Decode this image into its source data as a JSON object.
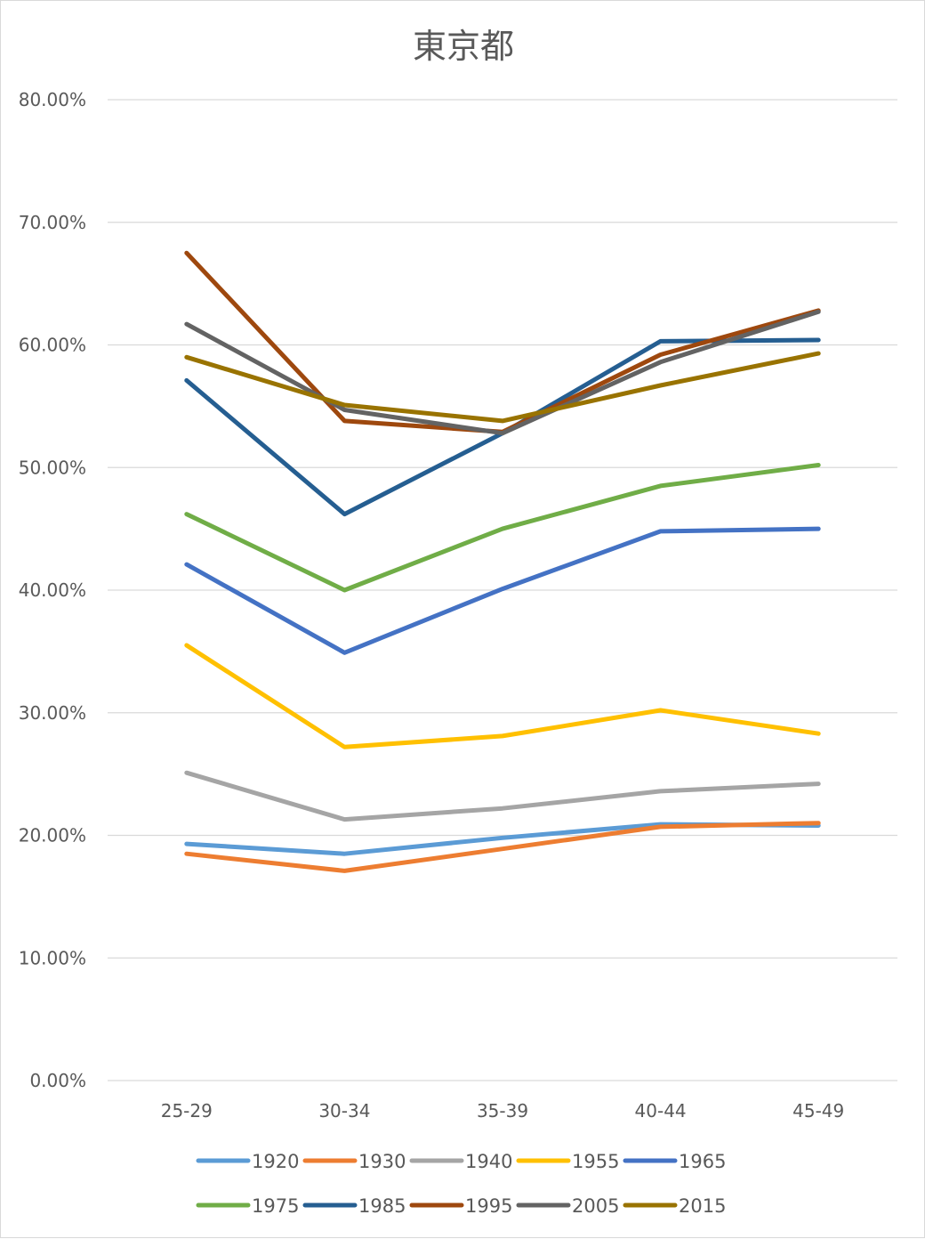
{
  "chart_data": {
    "type": "line",
    "title": "東京都",
    "xlabel": "",
    "ylabel": "",
    "categories": [
      "25-29",
      "30-34",
      "35-39",
      "40-44",
      "45-49"
    ],
    "ylim": [
      0,
      0.8
    ],
    "yticks": [
      0,
      0.1,
      0.2,
      0.3,
      0.4,
      0.5,
      0.6,
      0.7,
      0.8
    ],
    "ytick_labels": [
      "0.00%",
      "10.00%",
      "20.00%",
      "30.00%",
      "40.00%",
      "50.00%",
      "60.00%",
      "70.00%",
      "80.00%"
    ],
    "grid": true,
    "legend_position": "bottom",
    "series": [
      {
        "name": "1920",
        "color": "#5b9bd5",
        "values": [
          0.193,
          0.185,
          0.198,
          0.209,
          0.208
        ]
      },
      {
        "name": "1930",
        "color": "#ed7d31",
        "values": [
          0.185,
          0.171,
          0.189,
          0.207,
          0.21
        ]
      },
      {
        "name": "1940",
        "color": "#a5a5a5",
        "values": [
          0.251,
          0.213,
          0.222,
          0.236,
          0.242
        ]
      },
      {
        "name": "1955",
        "color": "#ffc000",
        "values": [
          0.355,
          0.272,
          0.281,
          0.302,
          0.283
        ]
      },
      {
        "name": "1965",
        "color": "#4472c4",
        "values": [
          0.421,
          0.349,
          0.401,
          0.448,
          0.45
        ]
      },
      {
        "name": "1975",
        "color": "#70ad47",
        "values": [
          0.462,
          0.4,
          0.45,
          0.485,
          0.502
        ]
      },
      {
        "name": "1985",
        "color": "#255e91",
        "values": [
          0.571,
          0.462,
          0.528,
          0.603,
          0.604
        ]
      },
      {
        "name": "1995",
        "color": "#9e480e",
        "values": [
          0.675,
          0.538,
          0.529,
          0.592,
          0.628
        ]
      },
      {
        "name": "2005",
        "color": "#636363",
        "values": [
          0.617,
          0.547,
          0.528,
          0.586,
          0.627
        ]
      },
      {
        "name": "2015",
        "color": "#997300",
        "values": [
          0.59,
          0.551,
          0.538,
          0.567,
          0.593
        ]
      }
    ]
  }
}
